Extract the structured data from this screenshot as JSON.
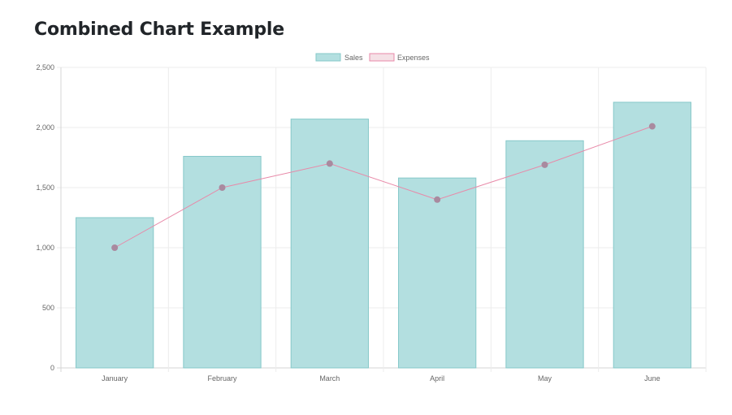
{
  "page": {
    "title": "Combined Chart Example"
  },
  "chart_data": {
    "type": "bar",
    "categories": [
      "January",
      "February",
      "March",
      "April",
      "May",
      "June"
    ],
    "series": [
      {
        "name": "Sales",
        "type": "bar",
        "values": [
          1250,
          1760,
          2070,
          1580,
          1890,
          2210
        ],
        "fill": "#b3dfe0",
        "stroke": "#86c8c9"
      },
      {
        "name": "Expenses",
        "type": "line",
        "values": [
          1000,
          1500,
          1700,
          1400,
          1690,
          2010
        ],
        "stroke": "#e889a8",
        "point_color": "#a98a9f",
        "legend_fill": "#f5e1e6"
      }
    ],
    "ylim": [
      0,
      2500
    ],
    "yticks": [
      0,
      500,
      1000,
      1500,
      2000,
      2500
    ],
    "ytick_labels": [
      "0",
      "500",
      "1,000",
      "1,500",
      "2,000",
      "2,500"
    ],
    "grid": true,
    "legend_position": "top-center"
  }
}
